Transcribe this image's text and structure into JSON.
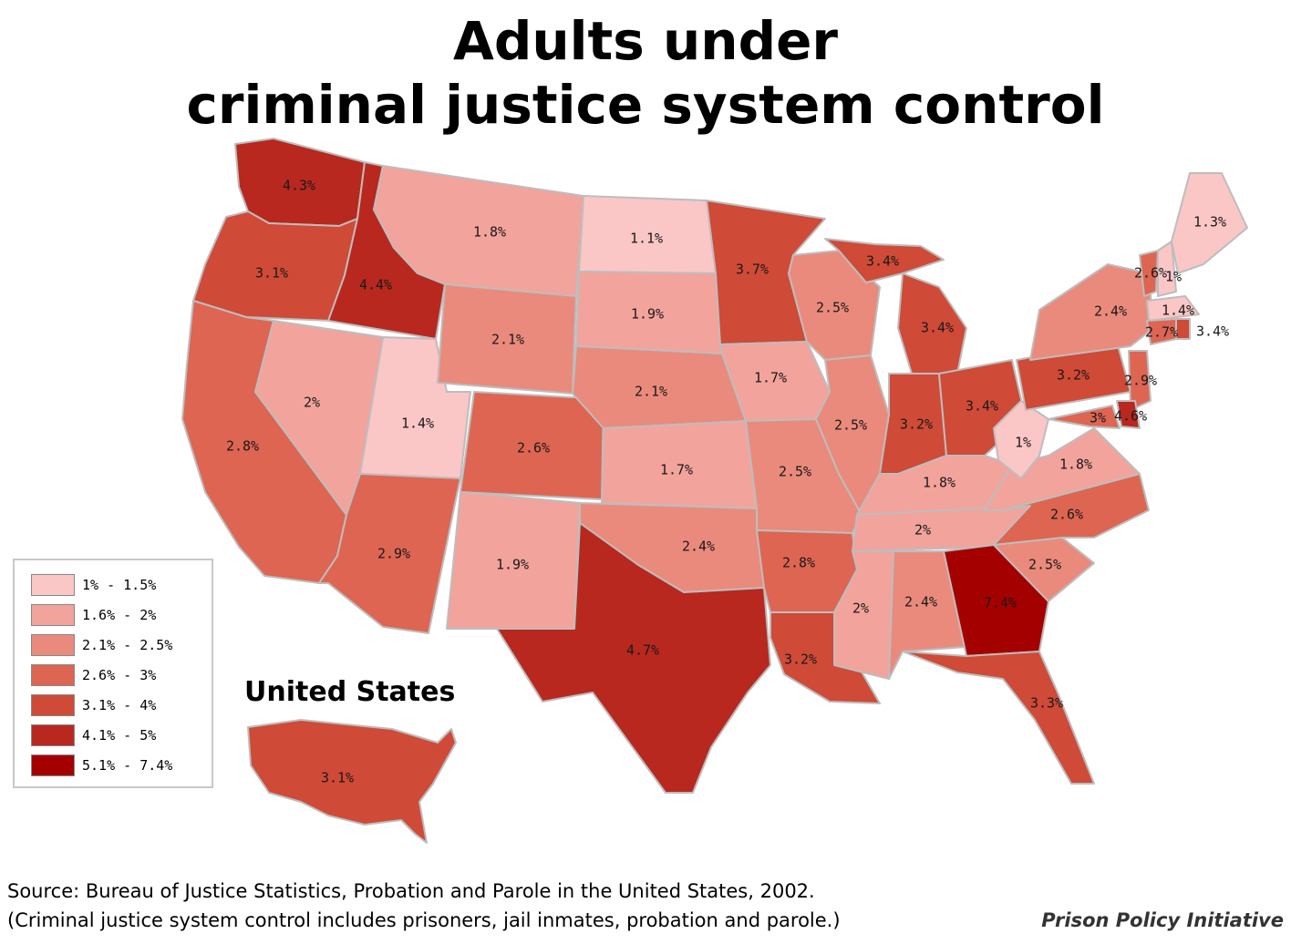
{
  "title": "Adults under criminal justice system control",
  "colors": {
    "c1": "#fbc6c6",
    "c2": "#f2a39c",
    "c3": "#ea8a7c",
    "c4": "#de6552",
    "c5": "#cf4a37",
    "c6": "#b8281e",
    "c7": "#a50000",
    "border": "#bdbdbd"
  },
  "legend": [
    {
      "label": "1% - 1.5%",
      "color": "#fbc6c6"
    },
    {
      "label": "1.6% - 2%",
      "color": "#f2a39c"
    },
    {
      "label": "2.1% - 2.5%",
      "color": "#ea8a7c"
    },
    {
      "label": "2.6% - 3%",
      "color": "#de6552"
    },
    {
      "label": "3.1% - 4%",
      "color": "#cf4a37"
    },
    {
      "label": "4.1% - 5%",
      "color": "#b8281e"
    },
    {
      "label": "5.1% - 7.4%",
      "color": "#a50000"
    }
  ],
  "states": {
    "WA": "4.3%",
    "OR": "3.1%",
    "CA": "2.8%",
    "ID": "4.4%",
    "NV": "2%",
    "UT": "1.4%",
    "AZ": "2.9%",
    "MT": "1.8%",
    "WY": "2.1%",
    "CO": "2.6%",
    "NM": "1.9%",
    "ND": "1.1%",
    "SD": "1.9%",
    "NE": "2.1%",
    "KS": "1.7%",
    "OK": "2.4%",
    "TX": "4.7%",
    "MN": "3.7%",
    "IA": "1.7%",
    "MO": "2.5%",
    "AR": "2.8%",
    "LA": "3.2%",
    "WI": "2.5%",
    "UPMI": "3.4%",
    "IL": "2.5%",
    "MI": "3.4%",
    "IN": "3.2%",
    "OH": "3.4%",
    "KY": "1.8%",
    "TN": "2%",
    "MS": "2%",
    "AL": "2.4%",
    "GA": "7.4%",
    "FL": "3.3%",
    "SC": "2.5%",
    "NC": "2.6%",
    "VA": "1.8%",
    "WV": "1%",
    "PA": "3.2%",
    "NY": "2.4%",
    "VT": "2.6%",
    "NH": "1%",
    "ME": "1.3%",
    "MA": "1.4%",
    "CT": "2.7%",
    "RI": "3.4%",
    "NJ": "2.9%",
    "DE": "4.6%",
    "MD": "3%"
  },
  "us_label": "United States",
  "us_value": "3.1%",
  "source_line1": "Source: Bureau of Justice Statistics, Probation and Parole in the United States, 2002.",
  "source_line2": "(Criminal justice system control includes prisoners, jail inmates, probation and parole.)",
  "credit": "Prison Policy Initiative"
}
